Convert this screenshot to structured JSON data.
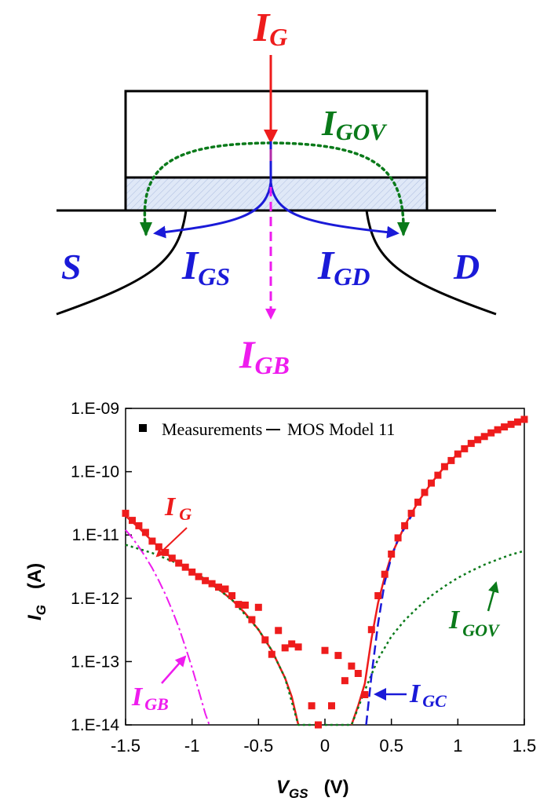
{
  "colors": {
    "red": "#ee1c1c",
    "green": "#0a7a1a",
    "blue": "#1a1ad8",
    "magenta": "#ee1cee",
    "black": "#000000",
    "oxide_fill": "#dfe8f7"
  },
  "diagram": {
    "ig": {
      "main": "I",
      "sub": "G"
    },
    "igov": {
      "main": "I",
      "sub": "GOV"
    },
    "igs": {
      "main": "I",
      "sub": "GS"
    },
    "igd": {
      "main": "I",
      "sub": "GD"
    },
    "igb": {
      "main": "I",
      "sub": "GB"
    },
    "source": "S",
    "drain": "D"
  },
  "chart_data": {
    "type": "scatter",
    "xlabel": {
      "main": "V",
      "sub": "GS",
      "unit": "(V)"
    },
    "ylabel": {
      "main": "I",
      "sub": "G",
      "unit": "(A)"
    },
    "xlim": [
      -1.5,
      1.5
    ],
    "ylim_log10": [
      -14,
      -9
    ],
    "yscale": "log",
    "xticks": [
      -1.5,
      -1,
      -0.5,
      0,
      0.5,
      1,
      1.5
    ],
    "xtick_labels": [
      "-1.5",
      "-1",
      "-0.5",
      "0",
      "0.5",
      "1",
      "1.5"
    ],
    "yticks_log10": [
      -9,
      -10,
      -11,
      -12,
      -13,
      -14
    ],
    "ytick_labels": [
      "1.E-09",
      "1.E-10",
      "1.E-11",
      "1.E-12",
      "1.E-13",
      "1.E-14"
    ],
    "legend": {
      "placement": "top",
      "measurements": "Measurements",
      "model": "MOS Model 11"
    },
    "annotations": {
      "ig": {
        "main": "I",
        "sub": "G"
      },
      "igov": {
        "main": "I",
        "sub": "GOV"
      },
      "igb": {
        "main": "I",
        "sub": "GB"
      },
      "igc": {
        "main": "I",
        "sub": "GC"
      }
    },
    "measurements": [
      {
        "x": -1.5,
        "y": 2.2e-11
      },
      {
        "x": -1.45,
        "y": 1.7e-11
      },
      {
        "x": -1.4,
        "y": 1.4e-11
      },
      {
        "x": -1.35,
        "y": 1.1e-11
      },
      {
        "x": -1.3,
        "y": 8e-12
      },
      {
        "x": -1.25,
        "y": 6.5e-12
      },
      {
        "x": -1.2,
        "y": 5.3e-12
      },
      {
        "x": -1.15,
        "y": 4.3e-12
      },
      {
        "x": -1.1,
        "y": 3.6e-12
      },
      {
        "x": -1.05,
        "y": 3.1e-12
      },
      {
        "x": -1.0,
        "y": 2.6e-12
      },
      {
        "x": -0.95,
        "y": 2.2e-12
      },
      {
        "x": -0.9,
        "y": 1.9e-12
      },
      {
        "x": -0.85,
        "y": 1.7e-12
      },
      {
        "x": -0.8,
        "y": 1.5e-12
      },
      {
        "x": -0.75,
        "y": 1.4e-12
      },
      {
        "x": -0.7,
        "y": 1.1e-12
      },
      {
        "x": -0.65,
        "y": 8e-13
      },
      {
        "x": -0.6,
        "y": 7.8e-13
      },
      {
        "x": -0.55,
        "y": 4.6e-13
      },
      {
        "x": -0.5,
        "y": 7.2e-13
      },
      {
        "x": -0.45,
        "y": 2.2e-13
      },
      {
        "x": -0.4,
        "y": 1.3e-13
      },
      {
        "x": -0.35,
        "y": 3.1e-13
      },
      {
        "x": -0.3,
        "y": 1.65e-13
      },
      {
        "x": -0.25,
        "y": 1.9e-13
      },
      {
        "x": -0.2,
        "y": 1.7e-13
      },
      {
        "x": -0.1,
        "y": 2e-14
      },
      {
        "x": -0.05,
        "y": 1e-14
      },
      {
        "x": 0.0,
        "y": 1.5e-13
      },
      {
        "x": 0.05,
        "y": 2e-14
      },
      {
        "x": 0.1,
        "y": 1.25e-13
      },
      {
        "x": 0.15,
        "y": 5e-14
      },
      {
        "x": 0.2,
        "y": 8.5e-14
      },
      {
        "x": 0.25,
        "y": 6.5e-14
      },
      {
        "x": 0.3,
        "y": 3e-14
      },
      {
        "x": 0.35,
        "y": 3.2e-13
      },
      {
        "x": 0.4,
        "y": 1.1e-12
      },
      {
        "x": 0.45,
        "y": 2.4e-12
      },
      {
        "x": 0.5,
        "y": 5e-12
      },
      {
        "x": 0.55,
        "y": 9e-12
      },
      {
        "x": 0.6,
        "y": 1.4e-11
      },
      {
        "x": 0.65,
        "y": 2.2e-11
      },
      {
        "x": 0.7,
        "y": 3.3e-11
      },
      {
        "x": 0.75,
        "y": 4.7e-11
      },
      {
        "x": 0.8,
        "y": 6.6e-11
      },
      {
        "x": 0.85,
        "y": 8.8e-11
      },
      {
        "x": 0.9,
        "y": 1.2e-10
      },
      {
        "x": 0.95,
        "y": 1.5e-10
      },
      {
        "x": 1.0,
        "y": 1.9e-10
      },
      {
        "x": 1.05,
        "y": 2.3e-10
      },
      {
        "x": 1.1,
        "y": 2.8e-10
      },
      {
        "x": 1.15,
        "y": 3.2e-10
      },
      {
        "x": 1.2,
        "y": 3.6e-10
      },
      {
        "x": 1.25,
        "y": 4.1e-10
      },
      {
        "x": 1.3,
        "y": 4.6e-10
      },
      {
        "x": 1.35,
        "y": 5.1e-10
      },
      {
        "x": 1.4,
        "y": 5.6e-10
      },
      {
        "x": 1.45,
        "y": 6.1e-10
      },
      {
        "x": 1.5,
        "y": 6.7e-10
      }
    ],
    "series": [
      {
        "key": "ig_model_left",
        "points": [
          {
            "x": -1.5,
            "y": 2e-11
          },
          {
            "x": -1.4,
            "y": 1.3e-11
          },
          {
            "x": -1.3,
            "y": 8e-12
          },
          {
            "x": -1.2,
            "y": 5.2e-12
          },
          {
            "x": -1.1,
            "y": 3.6e-12
          },
          {
            "x": -1.0,
            "y": 2.6e-12
          },
          {
            "x": -0.9,
            "y": 1.9e-12
          },
          {
            "x": -0.8,
            "y": 1.4e-12
          },
          {
            "x": -0.7,
            "y": 9.5e-13
          },
          {
            "x": -0.6,
            "y": 5.8e-13
          },
          {
            "x": -0.5,
            "y": 3.2e-13
          },
          {
            "x": -0.4,
            "y": 1.5e-13
          },
          {
            "x": -0.3,
            "y": 5.5e-14
          },
          {
            "x": -0.25,
            "y": 2.8e-14
          },
          {
            "x": -0.2,
            "y": 1e-14
          }
        ]
      },
      {
        "key": "ig_model_right",
        "points": [
          {
            "x": 0.2,
            "y": 1e-14
          },
          {
            "x": 0.25,
            "y": 2e-14
          },
          {
            "x": 0.3,
            "y": 4.5e-14
          },
          {
            "x": 0.35,
            "y": 2.3e-13
          },
          {
            "x": 0.4,
            "y": 8.5e-13
          },
          {
            "x": 0.45,
            "y": 2.2e-12
          },
          {
            "x": 0.5,
            "y": 4.8e-12
          },
          {
            "x": 0.6,
            "y": 1.4e-11
          },
          {
            "x": 0.7,
            "y": 3.3e-11
          },
          {
            "x": 0.8,
            "y": 6.6e-11
          },
          {
            "x": 0.9,
            "y": 1.2e-10
          },
          {
            "x": 1.0,
            "y": 1.9e-10
          },
          {
            "x": 1.1,
            "y": 2.8e-10
          },
          {
            "x": 1.2,
            "y": 3.6e-10
          },
          {
            "x": 1.3,
            "y": 4.6e-10
          },
          {
            "x": 1.4,
            "y": 5.6e-10
          },
          {
            "x": 1.5,
            "y": 6.7e-10
          }
        ]
      },
      {
        "key": "igc_model",
        "points": [
          {
            "x": 0.31,
            "y": 1e-14
          },
          {
            "x": 0.35,
            "y": 6e-14
          },
          {
            "x": 0.4,
            "y": 4e-13
          },
          {
            "x": 0.45,
            "y": 1.8e-12
          },
          {
            "x": 0.5,
            "y": 4.5e-12
          },
          {
            "x": 0.55,
            "y": 8.5e-12
          },
          {
            "x": 0.6,
            "y": 1.3e-11
          },
          {
            "x": 0.65,
            "y": 2e-11
          }
        ]
      },
      {
        "key": "igov_model",
        "points": [
          {
            "x": -1.5,
            "y": 7e-12
          },
          {
            "x": -1.3,
            "y": 5.2e-12
          },
          {
            "x": -1.1,
            "y": 3.5e-12
          },
          {
            "x": -0.9,
            "y": 2e-12
          },
          {
            "x": -0.7,
            "y": 9.5e-13
          },
          {
            "x": -0.5,
            "y": 3.2e-13
          },
          {
            "x": -0.4,
            "y": 1.5e-13
          },
          {
            "x": -0.3,
            "y": 5.5e-14
          },
          {
            "x": -0.2,
            "y": 1e-14
          },
          {
            "x": 0.2,
            "y": 1e-14
          },
          {
            "x": 0.3,
            "y": 3.5e-14
          },
          {
            "x": 0.4,
            "y": 1.1e-13
          },
          {
            "x": 0.5,
            "y": 2.5e-13
          },
          {
            "x": 0.6,
            "y": 4.5e-13
          },
          {
            "x": 0.7,
            "y": 7.2e-13
          },
          {
            "x": 0.8,
            "y": 1.1e-12
          },
          {
            "x": 0.9,
            "y": 1.55e-12
          },
          {
            "x": 1.0,
            "y": 2.1e-12
          },
          {
            "x": 1.1,
            "y": 2.7e-12
          },
          {
            "x": 1.2,
            "y": 3.4e-12
          },
          {
            "x": 1.3,
            "y": 4.1e-12
          },
          {
            "x": 1.4,
            "y": 4.9e-12
          },
          {
            "x": 1.5,
            "y": 5.6e-12
          }
        ]
      },
      {
        "key": "igb_model",
        "points": [
          {
            "x": -1.5,
            "y": 1.2e-11
          },
          {
            "x": -1.45,
            "y": 9e-12
          },
          {
            "x": -1.4,
            "y": 6.5e-12
          },
          {
            "x": -1.35,
            "y": 4.5e-12
          },
          {
            "x": -1.3,
            "y": 3e-12
          },
          {
            "x": -1.25,
            "y": 1.9e-12
          },
          {
            "x": -1.2,
            "y": 1.15e-12
          },
          {
            "x": -1.15,
            "y": 6.5e-13
          },
          {
            "x": -1.1,
            "y": 3.5e-13
          },
          {
            "x": -1.05,
            "y": 1.7e-13
          },
          {
            "x": -1.0,
            "y": 8e-14
          },
          {
            "x": -0.95,
            "y": 3.5e-14
          },
          {
            "x": -0.9,
            "y": 1.5e-14
          },
          {
            "x": -0.87,
            "y": 1e-14
          }
        ]
      }
    ]
  }
}
